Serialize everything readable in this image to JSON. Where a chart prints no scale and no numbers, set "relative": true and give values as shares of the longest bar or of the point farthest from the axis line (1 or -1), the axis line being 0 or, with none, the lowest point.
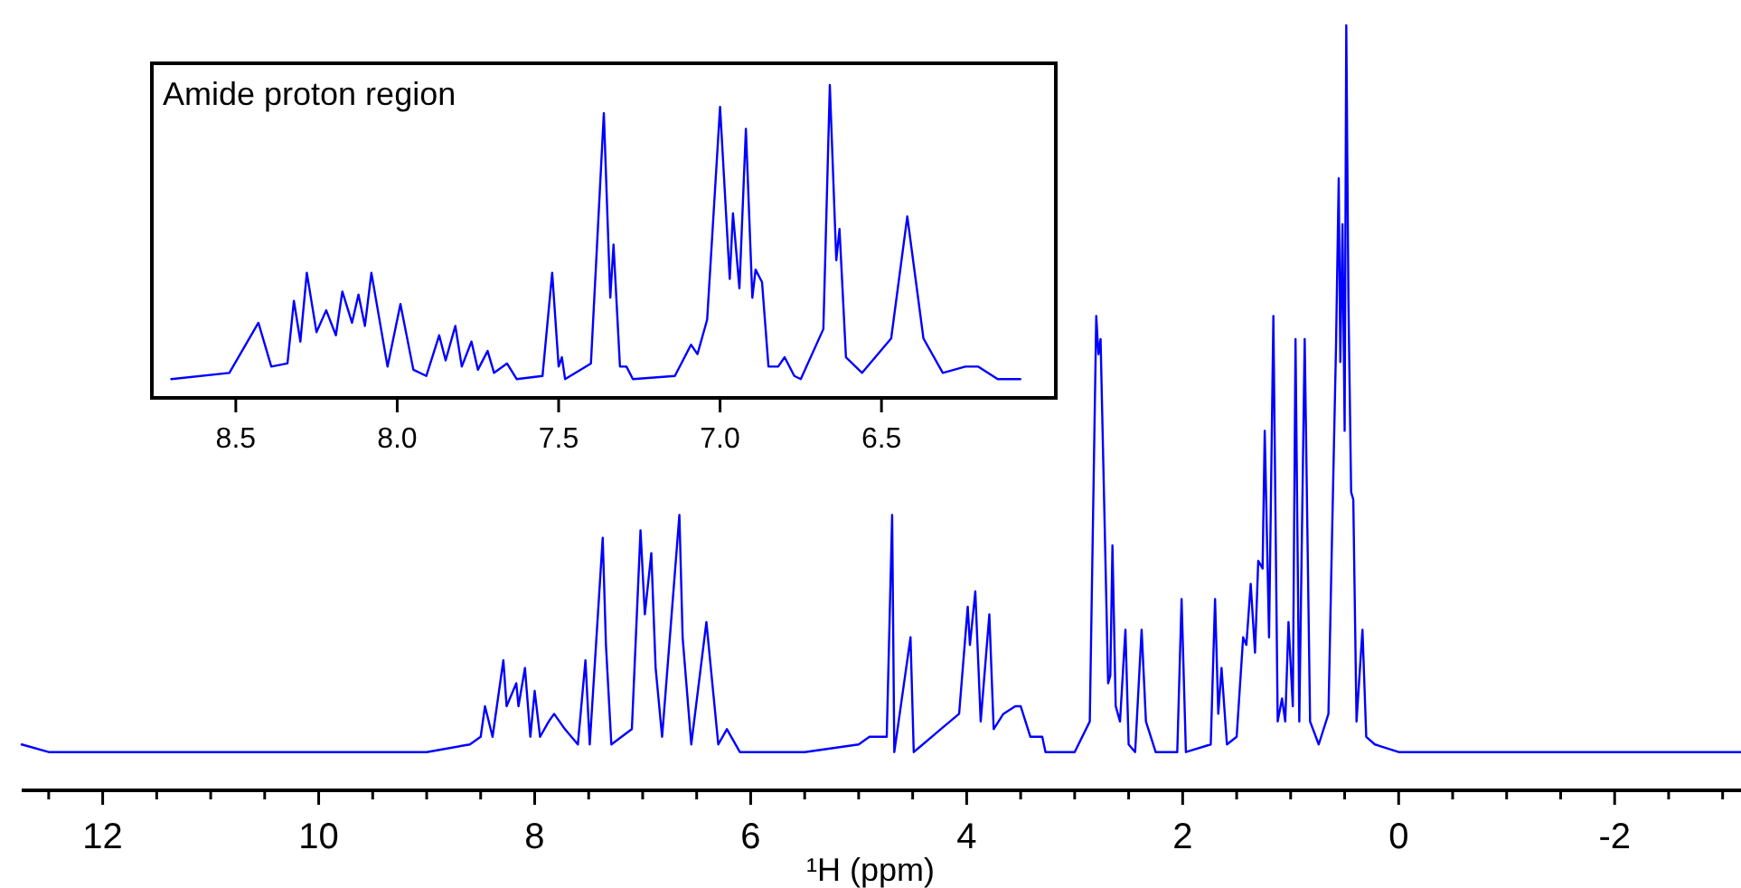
{
  "chart_data": [
    {
      "type": "line",
      "relative": true,
      "xlabel": "¹H (ppm)",
      "xlim": [
        12.75,
        -3.17
      ],
      "xticks": [
        {
          "value": 12.5,
          "label": null
        },
        12,
        {
          "value": 11.5,
          "label": null
        },
        {
          "value": 11,
          "label": null
        },
        {
          "value": 10.5,
          "label": null
        },
        10,
        {
          "value": 9.5,
          "label": null
        },
        {
          "value": 9,
          "label": null
        },
        {
          "value": 8.5,
          "label": null
        },
        8,
        {
          "value": 7.5,
          "label": null
        },
        {
          "value": 7,
          "label": null
        },
        {
          "value": 6.5,
          "label": null
        },
        6,
        {
          "value": 5.5,
          "label": null
        },
        {
          "value": 5,
          "label": null
        },
        {
          "value": 4.5,
          "label": null
        },
        4,
        {
          "value": 3.5,
          "label": null
        },
        {
          "value": 3,
          "label": null
        },
        {
          "value": 2.5,
          "label": null
        },
        2,
        {
          "value": 1.5,
          "label": null
        },
        {
          "value": 1,
          "label": null
        },
        {
          "value": 0.5,
          "label": null
        },
        0,
        {
          "value": -0.5,
          "label": null
        },
        {
          "value": -1,
          "label": null
        },
        {
          "value": -1.5,
          "label": null
        },
        -2,
        {
          "value": -2.5,
          "label": null
        },
        {
          "value": -3,
          "label": null
        }
      ],
      "series": [
        {
          "color": "#0000ff",
          "x": [
            12.75,
            12.5,
            11,
            10,
            9,
            8.6,
            8.5,
            8.46,
            8.39,
            8.33,
            8.29,
            8.26,
            8.17,
            8.15,
            8.09,
            8.04,
            8.0,
            7.95,
            7.87,
            7.82,
            7.77,
            7.72,
            7.66,
            7.6,
            7.53,
            7.49,
            7.37,
            7.34,
            7.29,
            7.1,
            7.02,
            6.98,
            6.92,
            6.88,
            6.82,
            6.66,
            6.63,
            6.55,
            6.41,
            6.3,
            6.22,
            6.1,
            5.5,
            5.0,
            4.9,
            4.74,
            4.69,
            4.67,
            4.52,
            4.49,
            4.24,
            4.07,
            3.99,
            3.97,
            3.92,
            3.87,
            3.79,
            3.75,
            3.66,
            3.55,
            3.5,
            3.41,
            3.3,
            3.27,
            3.0,
            2.86,
            2.8,
            2.78,
            2.76,
            2.69,
            2.67,
            2.65,
            2.62,
            2.58,
            2.53,
            2.5,
            2.44,
            2.38,
            2.34,
            2.25,
            2.05,
            2.01,
            1.97,
            1.74,
            1.7,
            1.67,
            1.64,
            1.59,
            1.5,
            1.44,
            1.41,
            1.37,
            1.33,
            1.3,
            1.26,
            1.24,
            1.2,
            1.16,
            1.12,
            1.08,
            1.05,
            1.02,
            0.98,
            0.955,
            0.92,
            0.87,
            0.82,
            0.74,
            0.65,
            0.62,
            0.58,
            0.555,
            0.54,
            0.52,
            0.5,
            0.485,
            0.465,
            0.44,
            0.42,
            0.39,
            0.335,
            0.3,
            0.22,
            0.0,
            -1,
            -2,
            -3.17
          ],
          "values": [
            0.06,
            0.05,
            0.05,
            0.05,
            0.05,
            0.06,
            0.07,
            0.11,
            0.07,
            0.13,
            0.17,
            0.11,
            0.14,
            0.11,
            0.16,
            0.07,
            0.13,
            0.07,
            0.09,
            0.1,
            0.09,
            0.08,
            0.07,
            0.06,
            0.17,
            0.06,
            0.33,
            0.19,
            0.06,
            0.08,
            0.34,
            0.23,
            0.31,
            0.16,
            0.07,
            0.36,
            0.2,
            0.06,
            0.22,
            0.06,
            0.08,
            0.05,
            0.05,
            0.06,
            0.07,
            0.07,
            0.36,
            0.05,
            0.2,
            0.05,
            0.08,
            0.1,
            0.24,
            0.19,
            0.26,
            0.09,
            0.23,
            0.08,
            0.1,
            0.11,
            0.11,
            0.07,
            0.07,
            0.05,
            0.05,
            0.09,
            0.62,
            0.57,
            0.59,
            0.14,
            0.15,
            0.32,
            0.11,
            0.09,
            0.21,
            0.06,
            0.05,
            0.21,
            0.09,
            0.05,
            0.05,
            0.25,
            0.05,
            0.06,
            0.25,
            0.1,
            0.16,
            0.06,
            0.07,
            0.2,
            0.19,
            0.27,
            0.18,
            0.3,
            0.29,
            0.47,
            0.2,
            0.62,
            0.09,
            0.12,
            0.09,
            0.22,
            0.11,
            0.59,
            0.09,
            0.59,
            0.09,
            0.06,
            0.1,
            0.31,
            0.58,
            0.8,
            0.56,
            0.74,
            0.47,
            1.0,
            0.64,
            0.39,
            0.38,
            0.09,
            0.21,
            0.07,
            0.06,
            0.05,
            0.05,
            0.05,
            0.05
          ]
        }
      ]
    },
    {
      "type": "line",
      "relative": true,
      "title": "Amide proton region",
      "xlim": [
        8.76,
        5.96
      ],
      "xticks": [
        8.5,
        {
          "value": 8,
          "label": "8.0"
        },
        7.5,
        {
          "value": 7,
          "label": "7.0"
        },
        6.5
      ],
      "series": [
        {
          "color": "#0000ff",
          "x": [
            8.7,
            8.52,
            8.43,
            8.39,
            8.34,
            8.32,
            8.3,
            8.28,
            8.25,
            8.22,
            8.19,
            8.17,
            8.14,
            8.12,
            8.1,
            8.08,
            8.03,
            7.99,
            7.95,
            7.91,
            7.87,
            7.85,
            7.82,
            7.8,
            7.77,
            7.75,
            7.72,
            7.7,
            7.66,
            7.63,
            7.55,
            7.52,
            7.5,
            7.49,
            7.48,
            7.4,
            7.36,
            7.34,
            7.33,
            7.31,
            7.29,
            7.27,
            7.14,
            7.09,
            7.07,
            7.04,
            7.0,
            6.97,
            6.96,
            6.94,
            6.92,
            6.9,
            6.89,
            6.87,
            6.85,
            6.82,
            6.8,
            6.77,
            6.75,
            6.68,
            6.66,
            6.64,
            6.63,
            6.61,
            6.56,
            6.47,
            6.42,
            6.37,
            6.31,
            6.24,
            6.2,
            6.14,
            6.07
          ],
          "values": [
            0.06,
            0.08,
            0.24,
            0.1,
            0.11,
            0.31,
            0.18,
            0.4,
            0.21,
            0.28,
            0.2,
            0.34,
            0.24,
            0.33,
            0.23,
            0.4,
            0.1,
            0.3,
            0.09,
            0.07,
            0.2,
            0.12,
            0.23,
            0.1,
            0.18,
            0.09,
            0.15,
            0.08,
            0.11,
            0.06,
            0.07,
            0.4,
            0.1,
            0.13,
            0.06,
            0.11,
            0.91,
            0.32,
            0.49,
            0.1,
            0.1,
            0.06,
            0.07,
            0.17,
            0.14,
            0.25,
            0.93,
            0.38,
            0.59,
            0.35,
            0.86,
            0.32,
            0.41,
            0.37,
            0.1,
            0.1,
            0.13,
            0.07,
            0.06,
            0.22,
            1.0,
            0.44,
            0.54,
            0.13,
            0.08,
            0.19,
            0.58,
            0.19,
            0.08,
            0.1,
            0.1,
            0.06,
            0.06
          ]
        }
      ]
    }
  ]
}
